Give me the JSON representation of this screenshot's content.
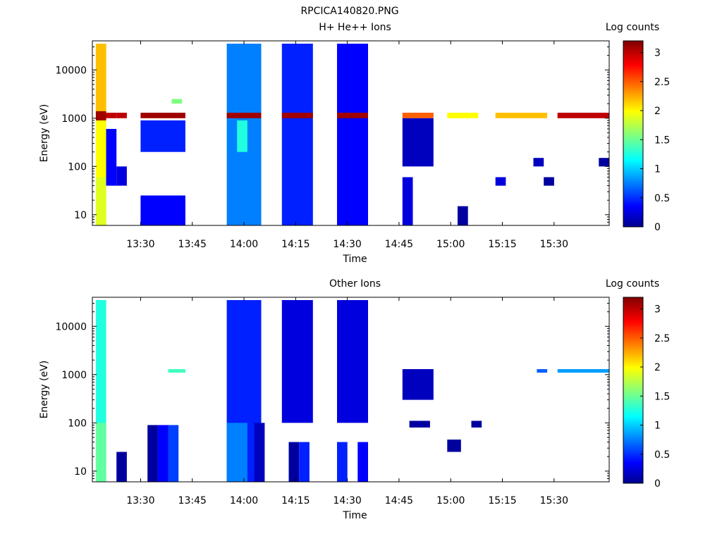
{
  "figure_title": "RPCICA140820.PNG",
  "colorbar": {
    "label": "Log counts",
    "ticks": [
      {
        "value": 0,
        "label": "0"
      },
      {
        "value": 0.5,
        "label": "0.5"
      },
      {
        "value": 1,
        "label": "1"
      },
      {
        "value": 1.5,
        "label": "1.5"
      },
      {
        "value": 2,
        "label": "2"
      },
      {
        "value": 2.5,
        "label": "2.5"
      },
      {
        "value": 3,
        "label": "3"
      }
    ],
    "range": [
      0,
      3.2
    ],
    "colormap": "jet"
  },
  "chart_data": [
    {
      "type": "heatmap",
      "title": "H+ He++ Ions",
      "xlabel": "Time",
      "ylabel": "Energy (eV)",
      "ylog": true,
      "ylim": [
        6,
        40000
      ],
      "xlim": [
        "13:16",
        "15:46"
      ],
      "xticks": [
        "13:30",
        "13:45",
        "14:00",
        "14:15",
        "14:30",
        "14:45",
        "15:00",
        "15:15",
        "15:30"
      ],
      "yticks": [
        {
          "value": 10,
          "label": "10"
        },
        {
          "value": 100,
          "label": "100"
        },
        {
          "value": 1000,
          "label": "1000"
        },
        {
          "value": 10000,
          "label": "10000"
        }
      ],
      "zlabel": "Log counts",
      "zlim": [
        0,
        3.2
      ],
      "cells": [
        {
          "t0": "13:17",
          "t1": "13:20",
          "e_min": 6,
          "e_max": 35000,
          "v": 2.0
        },
        {
          "t0": "13:17",
          "t1": "13:20",
          "e_min": 1400,
          "e_max": 35000,
          "v": 2.2
        },
        {
          "t0": "13:17",
          "t1": "13:20",
          "e_min": 900,
          "e_max": 1400,
          "v": 3.1
        },
        {
          "t0": "13:17",
          "t1": "13:20",
          "e_min": 6,
          "e_max": 60,
          "v": 1.9
        },
        {
          "t0": "13:20",
          "t1": "13:23",
          "e_min": 1000,
          "e_max": 1300,
          "v": 3.0
        },
        {
          "t0": "13:20",
          "t1": "13:23",
          "e_min": 40,
          "e_max": 600,
          "v": 0.4
        },
        {
          "t0": "13:23",
          "t1": "13:26",
          "e_min": 1000,
          "e_max": 1300,
          "v": 3.0
        },
        {
          "t0": "13:23",
          "t1": "13:26",
          "e_min": 40,
          "e_max": 100,
          "v": 0.3
        },
        {
          "t0": "13:30",
          "t1": "13:43",
          "e_min": 1000,
          "e_max": 1300,
          "v": 3.1
        },
        {
          "t0": "13:30",
          "t1": "13:43",
          "e_min": 6,
          "e_max": 25,
          "v": 0.4
        },
        {
          "t0": "13:30",
          "t1": "13:43",
          "e_min": 200,
          "e_max": 900,
          "v": 0.5
        },
        {
          "t0": "13:39",
          "t1": "13:42",
          "e_min": 2000,
          "e_max": 2500,
          "v": 1.6
        },
        {
          "t0": "13:55",
          "t1": "14:05",
          "e_min": 6,
          "e_max": 35000,
          "v": 0.8
        },
        {
          "t0": "13:55",
          "t1": "14:05",
          "e_min": 1000,
          "e_max": 1300,
          "v": 3.1
        },
        {
          "t0": "13:58",
          "t1": "14:01",
          "e_min": 200,
          "e_max": 900,
          "v": 1.3
        },
        {
          "t0": "14:11",
          "t1": "14:20",
          "e_min": 6,
          "e_max": 35000,
          "v": 0.5
        },
        {
          "t0": "14:11",
          "t1": "14:20",
          "e_min": 1000,
          "e_max": 1300,
          "v": 3.1
        },
        {
          "t0": "14:27",
          "t1": "14:36",
          "e_min": 6,
          "e_max": 35000,
          "v": 0.4
        },
        {
          "t0": "14:27",
          "t1": "14:36",
          "e_min": 1000,
          "e_max": 1300,
          "v": 3.1
        },
        {
          "t0": "14:46",
          "t1": "14:55",
          "e_min": 1000,
          "e_max": 1300,
          "v": 2.5
        },
        {
          "t0": "14:46",
          "t1": "14:55",
          "e_min": 100,
          "e_max": 1000,
          "v": 0.2
        },
        {
          "t0": "14:46",
          "t1": "14:49",
          "e_min": 6,
          "e_max": 60,
          "v": 0.3
        },
        {
          "t0": "14:59",
          "t1": "15:08",
          "e_min": 1000,
          "e_max": 1300,
          "v": 2.0
        },
        {
          "t0": "15:02",
          "t1": "15:05",
          "e_min": 6,
          "e_max": 15,
          "v": 0.1
        },
        {
          "t0": "15:13",
          "t1": "15:28",
          "e_min": 1000,
          "e_max": 1300,
          "v": 2.2
        },
        {
          "t0": "15:13",
          "t1": "15:16",
          "e_min": 40,
          "e_max": 60,
          "v": 0.3
        },
        {
          "t0": "15:24",
          "t1": "15:27",
          "e_min": 100,
          "e_max": 150,
          "v": 0.2
        },
        {
          "t0": "15:27",
          "t1": "15:30",
          "e_min": 40,
          "e_max": 60,
          "v": 0.1
        },
        {
          "t0": "15:31",
          "t1": "15:46",
          "e_min": 1000,
          "e_max": 1300,
          "v": 3.0
        },
        {
          "t0": "15:43",
          "t1": "15:46",
          "e_min": 100,
          "e_max": 150,
          "v": 0.1
        }
      ]
    },
    {
      "type": "heatmap",
      "title": "Other Ions",
      "xlabel": "Time",
      "ylabel": "Energy (eV)",
      "ylog": true,
      "ylim": [
        6,
        40000
      ],
      "xlim": [
        "13:16",
        "15:46"
      ],
      "xticks": [
        "13:30",
        "13:45",
        "14:00",
        "14:15",
        "14:30",
        "14:45",
        "15:00",
        "15:15",
        "15:30"
      ],
      "yticks": [
        {
          "value": 10,
          "label": "10"
        },
        {
          "value": 100,
          "label": "100"
        },
        {
          "value": 1000,
          "label": "1000"
        },
        {
          "value": 10000,
          "label": "10000"
        }
      ],
      "zlabel": "Log counts",
      "zlim": [
        0,
        3.2
      ],
      "cells": [
        {
          "t0": "13:17",
          "t1": "13:20",
          "e_min": 6,
          "e_max": 35000,
          "v": 1.3
        },
        {
          "t0": "13:17",
          "t1": "13:20",
          "e_min": 6,
          "e_max": 100,
          "v": 1.5
        },
        {
          "t0": "13:23",
          "t1": "13:26",
          "e_min": 6,
          "e_max": 25,
          "v": 0.1
        },
        {
          "t0": "13:32",
          "t1": "13:35",
          "e_min": 6,
          "e_max": 90,
          "v": 0.1
        },
        {
          "t0": "13:35",
          "t1": "13:38",
          "e_min": 6,
          "e_max": 90,
          "v": 0.4
        },
        {
          "t0": "13:38",
          "t1": "13:41",
          "e_min": 6,
          "e_max": 90,
          "v": 0.6
        },
        {
          "t0": "13:38",
          "t1": "13:43",
          "e_min": 1100,
          "e_max": 1300,
          "v": 1.4
        },
        {
          "t0": "13:55",
          "t1": "14:05",
          "e_min": 6,
          "e_max": 35000,
          "v": 0.5
        },
        {
          "t0": "13:55",
          "t1": "14:01",
          "e_min": 6,
          "e_max": 100,
          "v": 0.8
        },
        {
          "t0": "14:03",
          "t1": "14:06",
          "e_min": 6,
          "e_max": 100,
          "v": 0.2
        },
        {
          "t0": "14:11",
          "t1": "14:20",
          "e_min": 100,
          "e_max": 35000,
          "v": 0.3
        },
        {
          "t0": "14:13",
          "t1": "14:16",
          "e_min": 6,
          "e_max": 40,
          "v": 0.1
        },
        {
          "t0": "14:16",
          "t1": "14:19",
          "e_min": 6,
          "e_max": 40,
          "v": 0.5
        },
        {
          "t0": "14:27",
          "t1": "14:36",
          "e_min": 100,
          "e_max": 35000,
          "v": 0.3
        },
        {
          "t0": "14:27",
          "t1": "14:30",
          "e_min": 6,
          "e_max": 40,
          "v": 0.5
        },
        {
          "t0": "14:33",
          "t1": "14:36",
          "e_min": 6,
          "e_max": 40,
          "v": 0.4
        },
        {
          "t0": "14:46",
          "t1": "14:55",
          "e_min": 300,
          "e_max": 1300,
          "v": 0.2
        },
        {
          "t0": "14:48",
          "t1": "14:54",
          "e_min": 80,
          "e_max": 110,
          "v": 0.1
        },
        {
          "t0": "14:59",
          "t1": "15:03",
          "e_min": 25,
          "e_max": 45,
          "v": 0.1
        },
        {
          "t0": "15:06",
          "t1": "15:09",
          "e_min": 80,
          "e_max": 110,
          "v": 0.1
        },
        {
          "t0": "15:25",
          "t1": "15:28",
          "e_min": 1100,
          "e_max": 1300,
          "v": 0.7
        },
        {
          "t0": "15:31",
          "t1": "15:46",
          "e_min": 1100,
          "e_max": 1300,
          "v": 0.9
        }
      ]
    }
  ]
}
